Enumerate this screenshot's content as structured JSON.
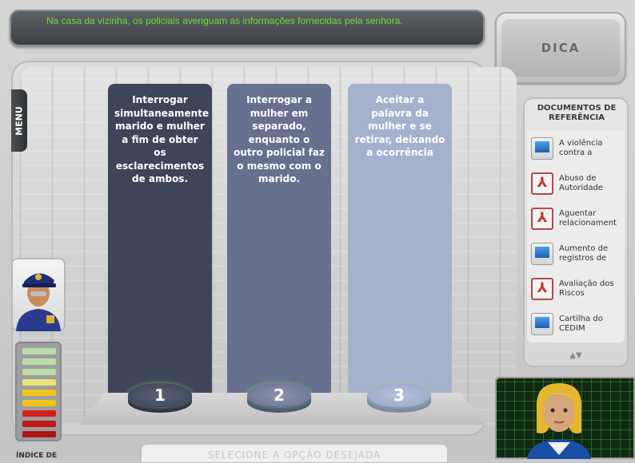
{
  "banner": {
    "message": "Na casa da vizinha, os policiais averiguam as informações fornecidas pela senhora."
  },
  "hint_button": {
    "label": "DICA"
  },
  "menu": {
    "label": "MENU"
  },
  "options": [
    {
      "number": "1",
      "text": "Interrogar simultaneamente marido e mulher a fim de obter os esclarecimentos de ambos."
    },
    {
      "number": "2",
      "text": "Interrogar a mulher em separado, enquanto o outro policial faz o mesmo com o marido."
    },
    {
      "number": "3",
      "text": "Aceitar a palavra da mulher e se retirar, deixando a ocorrência"
    }
  ],
  "prompt": "SELECIONE A OPÇÃO DESEJADA",
  "meter": {
    "label": "ÍNDICE DE"
  },
  "documents": {
    "title": "DOCUMENTOS DE REFERÊNCIA",
    "items": [
      {
        "icon": "monitor-icon",
        "label": "A violência contra a"
      },
      {
        "icon": "pdf-icon",
        "label": "Abuso de Autoridade"
      },
      {
        "icon": "pdf-icon",
        "label": "Aguentar relacionament"
      },
      {
        "icon": "monitor-icon",
        "label": "Aumento de registros de"
      },
      {
        "icon": "pdf-icon",
        "label": "Avaliação dos Riscos"
      },
      {
        "icon": "monitor-icon",
        "label": "Cartilha do CEDIM"
      }
    ],
    "scroll_arrows": "▲▼"
  }
}
